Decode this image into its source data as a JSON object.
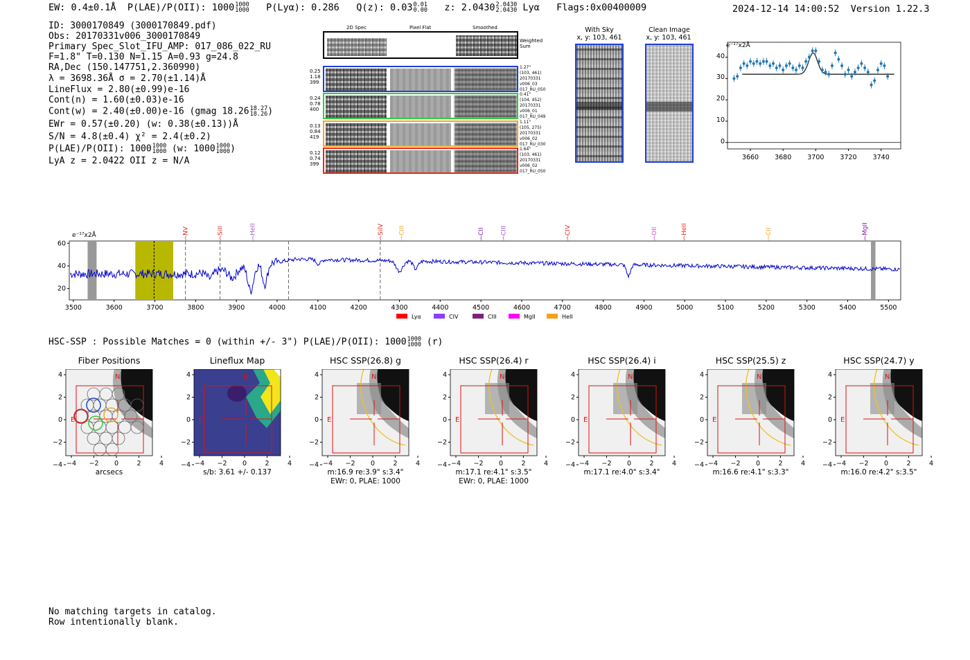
{
  "header": {
    "ew": "EW: 0.4±0.1Å",
    "plae": "P(LAE)/P(OII): 1000",
    "plae_hi": "1000",
    "plae_lo": "1000",
    "plya": "P(Lyα): 0.286",
    "qz": "Q(z): 0.03",
    "qz_hi": "0.01",
    "qz_lo": "0.00",
    "z": "z: 2.0430",
    "z_hi": "2.0430",
    "z_lo": "2.0430",
    "z_line": "Lyα",
    "flags": "Flags:0x00400009",
    "timestamp": "2024-12-14 14:00:52",
    "version": "Version 1.22.3"
  },
  "info": {
    "lines": [
      "ID: 3000170849 (3000170849.pdf)",
      "Obs: 20170331v006_3000170849",
      "Primary Spec_Slot_IFU_AMP: 017_086_022_RU",
      "F=1.8\"  T=0.130  N=1.15  A=0.93  g=24.8",
      "RA,Dec (150.147751,2.360990)",
      "λ = 3698.36Å  σ = 2.70(±1.14)Å",
      "LineFlux = 2.80(±0.99)e-16",
      "Cont(n) = 1.60(±0.03)e-16",
      "Cont(w) = 2.40(±0.00)e-16 (gmag 18.26",
      "EWr = 0.57(±0.20)  (w: 0.38(±0.13))Å",
      "S/N = 4.8(±0.4)  χ² = 2.4(±0.2)",
      "P(LAE)/P(OII): 1000",
      "LyA z = 2.0422  OII z = N/A"
    ],
    "gmag_hi": "18.27",
    "gmag_lo": "18.26",
    "plae_hi": "1000",
    "plae_lo": "1000",
    "plae_w": "(w: 1000",
    "plae_w_hi": "1000",
    "plae_w_lo": "1000"
  },
  "cutouts": {
    "col_titles": [
      "2D Spec",
      "Pixel Flat",
      "Smoothed"
    ],
    "weighted_sum": "Weighted Sum",
    "rows": [
      {
        "left": [
          "0.25",
          "1.18",
          "399"
        ],
        "right": [
          "1.27\"",
          "(103, 461)",
          "20170331",
          "v006_03",
          "017_RU_050"
        ],
        "color": "#1f3fd6"
      },
      {
        "left": [
          "0.24",
          "0.78",
          "400"
        ],
        "right": [
          "0.41\"",
          "(104, 452)",
          "20170331",
          "v006_01",
          "017_RU_049"
        ],
        "color": "#2ecc40"
      },
      {
        "left": [
          "0.13",
          "0.84",
          "419"
        ],
        "right": [
          "1.11\"",
          "(105, 275)",
          "20170331",
          "v006_02",
          "017_RU_030"
        ],
        "color": "#f5a623"
      },
      {
        "left": [
          "0.12",
          "0.74",
          "399"
        ],
        "right": [
          "1.64\"",
          "(103, 461)",
          "20170331",
          "v006_02",
          "017_RU_050"
        ],
        "color": "#e8261c"
      }
    ]
  },
  "sky": {
    "with_sky_title": "With Sky",
    "with_sky_xy": "x, y: 103, 461",
    "clean_title": "Clean Image",
    "clean_xy": "x, y: 103, 461"
  },
  "fit_plot": {
    "ylabel": "e⁻¹⁷x2Å",
    "yticks": [
      "0",
      "10",
      "20",
      "30",
      "40"
    ],
    "xticks": [
      "3660",
      "3680",
      "3700",
      "3720",
      "3740"
    ]
  },
  "spectrum": {
    "ylabel": "e⁻¹⁷x2Å",
    "yticks": [
      "20",
      "40",
      "60"
    ],
    "xticks": [
      "3500",
      "3600",
      "3700",
      "3800",
      "3900",
      "4000",
      "4100",
      "4200",
      "4300",
      "4400",
      "4500",
      "4600",
      "4700",
      "4800",
      "4900",
      "5000",
      "5100",
      "5200",
      "5300",
      "5400",
      "5500"
    ],
    "lines": [
      {
        "label": "NV",
        "color": "#e8261c"
      },
      {
        "label": "SiII",
        "color": "#e8261c"
      },
      {
        "label": "HeII",
        "color": "#9b59d0"
      },
      {
        "label": "SiIV",
        "color": "#e8261c"
      },
      {
        "label": "CIII",
        "color": "#f5a623"
      },
      {
        "label": "CII",
        "color": "#7d1fa0"
      },
      {
        "label": "CIII",
        "color": "#9b59d0"
      },
      {
        "label": "CIV",
        "color": "#e8261c"
      },
      {
        "label": "OII",
        "color": "#e040e0"
      },
      {
        "label": "HeII",
        "color": "#e8261c"
      },
      {
        "label": "CII",
        "color": "#f5a623"
      },
      {
        "label": "MgII",
        "color": "#7d1fa0"
      }
    ],
    "legend": [
      {
        "label": "Lyα",
        "color": "#ff0000"
      },
      {
        "label": "CIV",
        "color": "#8a3ffc"
      },
      {
        "label": "CIII",
        "color": "#7d1f80"
      },
      {
        "label": "MgII",
        "color": "#ff00ff"
      },
      {
        "label": "HeII",
        "color": "#f5a01a"
      }
    ]
  },
  "hsc": {
    "summary": "HSC-SSP : Possible Matches = 0 (within +/- 3\")  P(LAE)/P(OII): 1000",
    "summary_hi": "1000",
    "summary_lo": "1000",
    "summary_tail": "(r)",
    "panels": [
      {
        "title": "Fiber Positions",
        "cap1": "arcsecs",
        "cap2": ""
      },
      {
        "title": "Lineflux Map",
        "cap1": "s/b: 3.61 +/- 0.137",
        "cap2": ""
      },
      {
        "title": "HSC SSP(26.8) g",
        "cap1": "m:16.9  re:3.9\"  s:3.4\"",
        "cap2": "EWr: 0, PLAE: 1000"
      },
      {
        "title": "HSC SSP(26.4) r",
        "cap1": "m:17.1  re:4.1\"  s:3.5\"",
        "cap2": "EWr: 0, PLAE: 1000"
      },
      {
        "title": "HSC SSP(26.4) i",
        "cap1": "m:17.1  re:4.0\"  s:3.4\"",
        "cap2": ""
      },
      {
        "title": "HSC SSP(25.5) z",
        "cap1": "m:16.6  re:4.1\"  s:3.3\"",
        "cap2": ""
      },
      {
        "title": "HSC SSP(24.7) y",
        "cap1": "m:16.0  re:4.2\"  s:3.5\"",
        "cap2": ""
      }
    ],
    "yticks": [
      "4",
      "2",
      "0",
      "−2",
      "−4"
    ],
    "xticks": [
      "−4",
      "−2",
      "0",
      "2",
      "4"
    ],
    "n_label": "N",
    "e_label": "E"
  },
  "footer": {
    "line1": "No matching targets in catalog.",
    "line2": "Row intentionally blank."
  }
}
